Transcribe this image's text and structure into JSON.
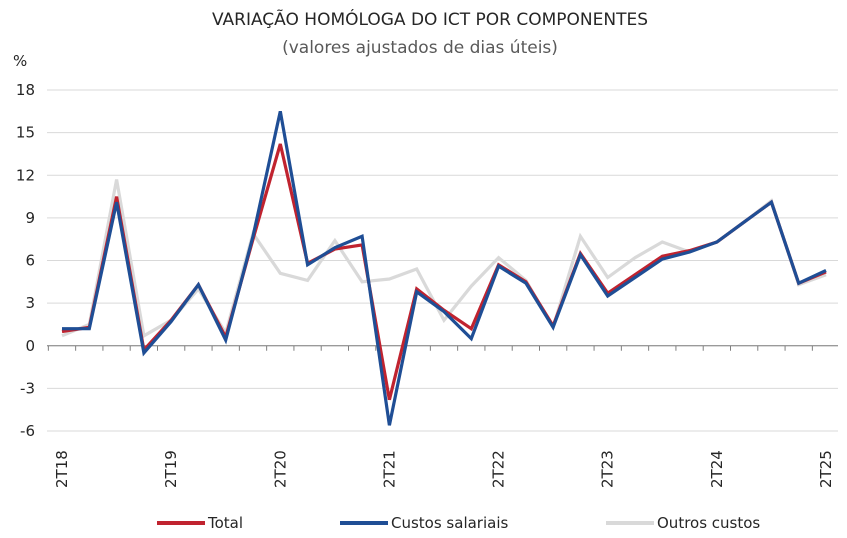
{
  "chart_data": {
    "type": "line",
    "title": "VARIAÇÃO HOMÓLOGA DO ICT POR COMPONENTES",
    "subtitle": "(valores ajustados de dias úteis)",
    "ylabel": "%",
    "ylim": [
      -6,
      18
    ],
    "yticks": [
      "18",
      "15",
      "12",
      "9",
      "6",
      "3",
      "0",
      "-3",
      "-6"
    ],
    "ytick_values": [
      18,
      15,
      12,
      9,
      6,
      3,
      0,
      -3,
      -6
    ],
    "x_tick_labels": [
      {
        "label": "2T18",
        "index": 0
      },
      {
        "label": "2T19",
        "index": 4
      },
      {
        "label": "2T20",
        "index": 8
      },
      {
        "label": "2T21",
        "index": 12
      },
      {
        "label": "2T22",
        "index": 16
      },
      {
        "label": "2T23",
        "index": 20
      },
      {
        "label": "2T24",
        "index": 24
      },
      {
        "label": "2T25",
        "index": 28
      }
    ],
    "grid": "horizontal",
    "legend_position": "bottom",
    "x": [
      "2T18",
      "3T18",
      "4T18",
      "1T19",
      "2T19",
      "3T19",
      "4T19",
      "1T20",
      "2T20",
      "3T20",
      "4T20",
      "1T21",
      "2T21",
      "3T21",
      "4T21",
      "1T22",
      "2T22",
      "3T22",
      "4T22",
      "1T23",
      "2T23",
      "3T23",
      "4T23",
      "1T24",
      "2T24",
      "3T24",
      "4T24",
      "1T25",
      "2T25"
    ],
    "series": [
      {
        "name": "Total",
        "color": "#C0232F",
        "values": [
          1.0,
          1.3,
          10.5,
          -0.3,
          1.8,
          4.3,
          0.6,
          7.5,
          14.2,
          5.8,
          6.8,
          7.1,
          -3.8,
          4.0,
          2.5,
          1.2,
          5.7,
          4.5,
          1.4,
          6.5,
          3.7,
          5.0,
          6.3,
          6.7,
          7.3,
          8.7,
          10.1,
          4.4,
          5.2
        ]
      },
      {
        "name": "Custos salariais",
        "color": "#1F4E95",
        "values": [
          1.2,
          1.2,
          10.1,
          -0.5,
          1.7,
          4.3,
          0.4,
          7.7,
          16.5,
          5.7,
          6.9,
          7.7,
          -5.6,
          3.8,
          2.4,
          0.5,
          5.6,
          4.4,
          1.3,
          6.4,
          3.5,
          4.8,
          6.1,
          6.6,
          7.3,
          8.7,
          10.1,
          4.4,
          5.3
        ]
      },
      {
        "name": "Outros custos",
        "color": "#D9D9D9",
        "values": [
          0.7,
          1.5,
          11.7,
          0.7,
          1.8,
          4.0,
          0.9,
          7.9,
          5.1,
          4.6,
          7.4,
          4.5,
          4.7,
          5.4,
          1.8,
          4.2,
          6.2,
          4.6,
          1.3,
          7.7,
          4.8,
          6.2,
          7.3,
          6.6,
          7.3,
          8.7,
          10.2,
          4.3,
          5.0
        ]
      }
    ]
  }
}
